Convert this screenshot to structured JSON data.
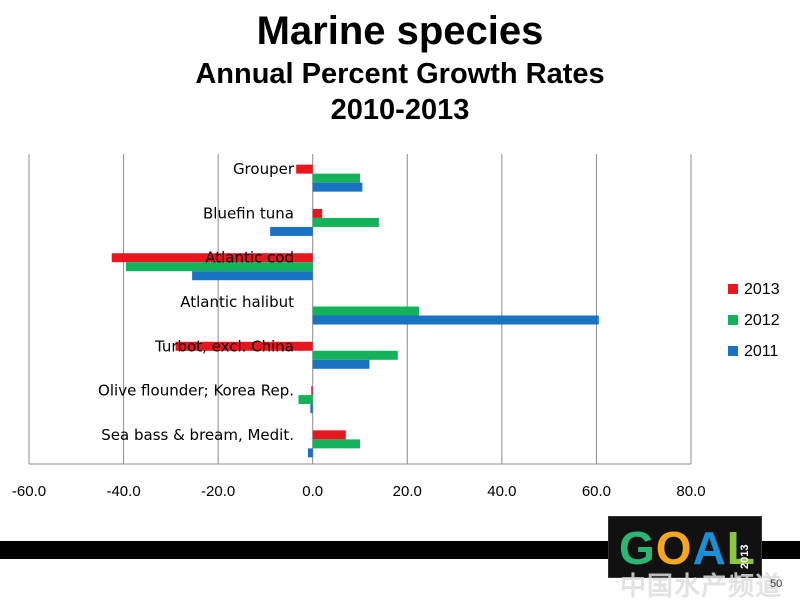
{
  "title": {
    "line1": "Marine species",
    "line2": "Annual Percent Growth Rates",
    "line3": "2010-2013"
  },
  "chart_data": {
    "type": "bar",
    "orientation": "horizontal",
    "categories": [
      "Grouper",
      "Bluefin tuna",
      "Atlantic cod",
      "Atlantic halibut",
      "Turbot, excl. China",
      "Olive flounder; Korea Rep.",
      "Sea bass & bream, Medit."
    ],
    "series": [
      {
        "name": "2013",
        "color": "#e8161f",
        "values": [
          -3.5,
          2.0,
          -42.5,
          null,
          -29.0,
          -0.3,
          7.0
        ]
      },
      {
        "name": "2012",
        "color": "#14b25a",
        "values": [
          10.0,
          14.0,
          -39.5,
          22.5,
          18.0,
          -3.0,
          10.0
        ]
      },
      {
        "name": "2011",
        "color": "#1a72c2",
        "values": [
          10.5,
          -9.0,
          -25.5,
          60.5,
          12.0,
          -0.5,
          -1.0
        ]
      }
    ],
    "xlim": [
      -60,
      80
    ],
    "xticks": [
      "-60.0",
      "-40.0",
      "-20.0",
      "0.0",
      "20.0",
      "40.0",
      "60.0",
      "80.0"
    ],
    "grid": "vertical",
    "legend_position": "right"
  },
  "logo": {
    "text": "GOAL",
    "year": "2013"
  },
  "watermark": "中国水产频道",
  "page_number": "50"
}
